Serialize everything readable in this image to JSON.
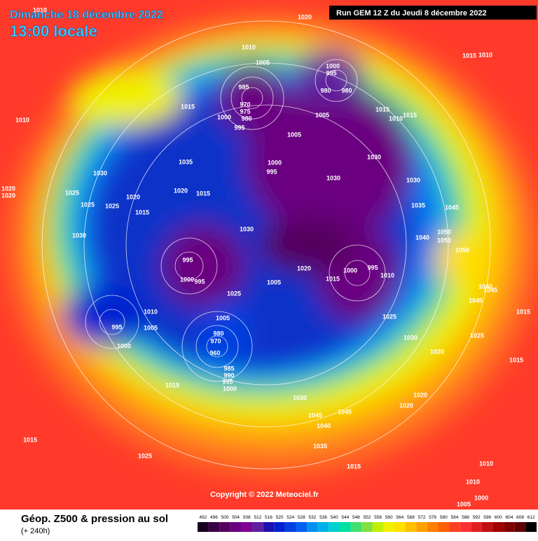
{
  "header": {
    "date": "Dimanche 18 décembre 2022",
    "time": "13:00 locale",
    "run": "Run GEM 12 Z du Jeudi 8 décembre 2022"
  },
  "footer": {
    "title": "Géop. Z500 & pression au sol",
    "lead": "(+ 240h)",
    "copyright": "Copyright © 2022 Meteociel.fr"
  },
  "colorbar": {
    "values": [
      492,
      496,
      500,
      504,
      508,
      512,
      516,
      520,
      524,
      528,
      532,
      536,
      540,
      544,
      548,
      552,
      556,
      560,
      564,
      568,
      572,
      576,
      580,
      584,
      588,
      592,
      596,
      600,
      604,
      608,
      612
    ],
    "colors": [
      "#1a0020",
      "#3a0045",
      "#55005e",
      "#6a0080",
      "#800095",
      "#6020a0",
      "#2010b0",
      "#0020d0",
      "#0040e0",
      "#0060f0",
      "#0090f0",
      "#00b0e8",
      "#00d0d0",
      "#00e0a0",
      "#40e070",
      "#80e040",
      "#c0f000",
      "#f0f000",
      "#ffe000",
      "#ffc000",
      "#ffa000",
      "#ff8000",
      "#ff6000",
      "#ff4020",
      "#ff3030",
      "#e02020",
      "#c01010",
      "#a00000",
      "#800000",
      "#600000",
      "#000000"
    ]
  },
  "map": {
    "pressure_labels": [
      1010,
      1020,
      1010,
      1005,
      1015,
      1010,
      985,
      1000,
      995,
      980,
      980,
      970,
      975,
      980,
      995,
      1000,
      1015,
      1010,
      1005,
      1005,
      1015,
      1015,
      1010,
      1035,
      1030,
      1000,
      995,
      1030,
      1030,
      1030,
      1020,
      1020,
      1025,
      1025,
      1025,
      1020,
      1015,
      1020,
      1015,
      1045,
      1035,
      1030,
      1030,
      1050,
      1050,
      1040,
      1050,
      995,
      1020,
      1000,
      995,
      1010,
      1015,
      1000,
      995,
      1005,
      1025,
      1040,
      1045,
      1045,
      1010,
      1005,
      1015,
      995,
      1005,
      1025,
      980,
      970,
      960,
      1030,
      1025,
      1000,
      1015,
      1020,
      985,
      990,
      995,
      1000,
      1015,
      1030,
      1020,
      1020,
      1045,
      1045,
      1040,
      1015,
      1035,
      1025,
      1015,
      1010,
      1010,
      1005,
      1000
    ]
  }
}
